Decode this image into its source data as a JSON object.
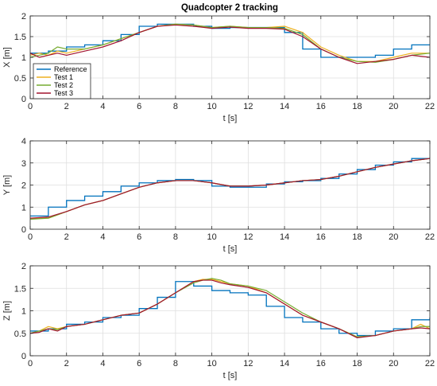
{
  "chart_data": {
    "type": "line",
    "title": "Quadcopter 2 tracking",
    "legend": {
      "placement": "bottom-left of top panel",
      "entries": [
        "Reference",
        "Test 1",
        "Test 2",
        "Test 3"
      ]
    },
    "series_colors": {
      "Reference": "#0072BD",
      "Test 1": "#EDB120",
      "Test 2": "#77AC30",
      "Test 3": "#A2142F"
    },
    "grid": true,
    "panels": [
      {
        "name": "X",
        "ylabel": "X [m]",
        "xlabel": "t [s]",
        "xlim": [
          0,
          22
        ],
        "ylim": [
          0,
          2
        ],
        "xticks": [
          0,
          2,
          4,
          6,
          8,
          10,
          12,
          14,
          16,
          18,
          20,
          22
        ],
        "yticks": [
          0,
          0.5,
          1,
          1.5,
          2
        ],
        "ytick_labels": [
          "0",
          "0.5",
          "1",
          "1.5",
          "2"
        ],
        "reference_steps": {
          "x": [
            0,
            1,
            2,
            3,
            4,
            5,
            6,
            7,
            8,
            9,
            10,
            11,
            12,
            13,
            14,
            15,
            16,
            17,
            18,
            19,
            20,
            21,
            22
          ],
          "y": [
            1.1,
            1.15,
            1.25,
            1.3,
            1.4,
            1.55,
            1.75,
            1.8,
            1.8,
            1.75,
            1.7,
            1.72,
            1.72,
            1.72,
            1.6,
            1.2,
            1.0,
            1.0,
            1.0,
            1.05,
            1.2,
            1.3,
            1.3
          ]
        },
        "series": [
          {
            "name": "Test 1",
            "x": [
              0,
              0.5,
              1,
              1.5,
              2,
              3,
              4,
              5,
              6,
              7,
              8,
              9,
              10,
              11,
              12,
              13,
              14,
              15,
              16,
              17,
              18,
              19,
              20,
              21,
              22
            ],
            "y": [
              1.05,
              1.1,
              1.05,
              1.15,
              1.1,
              1.2,
              1.3,
              1.45,
              1.6,
              1.75,
              1.8,
              1.78,
              1.72,
              1.75,
              1.72,
              1.72,
              1.75,
              1.6,
              1.25,
              1.05,
              0.9,
              0.9,
              1.0,
              1.1,
              1.1
            ]
          },
          {
            "name": "Test 2",
            "x": [
              0,
              0.5,
              1,
              1.5,
              2,
              3,
              4,
              5,
              6,
              7,
              8,
              9,
              10,
              11,
              12,
              13,
              14,
              15,
              16,
              17,
              18,
              19,
              20,
              21,
              22
            ],
            "y": [
              1.0,
              1.05,
              1.1,
              1.25,
              1.2,
              1.2,
              1.3,
              1.45,
              1.6,
              1.75,
              1.8,
              1.78,
              1.72,
              1.75,
              1.72,
              1.72,
              1.7,
              1.55,
              1.2,
              1.0,
              0.9,
              0.88,
              0.95,
              1.05,
              1.1
            ]
          },
          {
            "name": "Test 3",
            "x": [
              0,
              0.5,
              1,
              1.5,
              2,
              3,
              4,
              5,
              6,
              7,
              8,
              9,
              10,
              11,
              12,
              13,
              14,
              15,
              16,
              17,
              18,
              19,
              20,
              21,
              22
            ],
            "y": [
              1.1,
              1.0,
              1.05,
              1.1,
              1.05,
              1.15,
              1.25,
              1.4,
              1.6,
              1.75,
              1.78,
              1.75,
              1.7,
              1.73,
              1.7,
              1.7,
              1.68,
              1.5,
              1.2,
              1.0,
              0.85,
              0.9,
              0.95,
              1.05,
              1.0
            ]
          }
        ]
      },
      {
        "name": "Y",
        "ylabel": "Y [m]",
        "xlabel": "t [s]",
        "xlim": [
          0,
          22
        ],
        "ylim": [
          0,
          4
        ],
        "xticks": [
          0,
          2,
          4,
          6,
          8,
          10,
          12,
          14,
          16,
          18,
          20,
          22
        ],
        "yticks": [
          0,
          1,
          2,
          3,
          4
        ],
        "ytick_labels": [
          "0",
          "1",
          "2",
          "3",
          "4"
        ],
        "reference_steps": {
          "x": [
            0,
            1,
            2,
            3,
            4,
            5,
            6,
            7,
            8,
            9,
            10,
            11,
            12,
            13,
            14,
            15,
            16,
            17,
            18,
            19,
            20,
            21,
            22
          ],
          "y": [
            0.6,
            1.0,
            1.3,
            1.5,
            1.7,
            1.95,
            2.1,
            2.2,
            2.25,
            2.2,
            1.95,
            1.9,
            1.9,
            2.05,
            2.15,
            2.2,
            2.3,
            2.5,
            2.7,
            2.9,
            3.05,
            3.2,
            3.25
          ]
        },
        "series": [
          {
            "name": "Test 1",
            "x": [
              0,
              1,
              2,
              3,
              4,
              5,
              6,
              7,
              8,
              9,
              10,
              11,
              12,
              13,
              14,
              15,
              16,
              17,
              18,
              19,
              20,
              21,
              22
            ],
            "y": [
              0.5,
              0.5,
              0.8,
              1.1,
              1.3,
              1.6,
              1.9,
              2.1,
              2.2,
              2.2,
              2.1,
              1.95,
              1.95,
              2.0,
              2.1,
              2.2,
              2.25,
              2.4,
              2.6,
              2.8,
              2.95,
              3.1,
              3.2
            ]
          },
          {
            "name": "Test 2",
            "x": [
              0,
              1,
              2,
              3,
              4,
              5,
              6,
              7,
              8,
              9,
              10,
              11,
              12,
              13,
              14,
              15,
              16,
              17,
              18,
              19,
              20,
              21,
              22
            ],
            "y": [
              0.45,
              0.5,
              0.8,
              1.1,
              1.3,
              1.6,
              1.9,
              2.1,
              2.2,
              2.2,
              2.1,
              1.95,
              1.95,
              2.0,
              2.1,
              2.2,
              2.25,
              2.4,
              2.6,
              2.8,
              2.95,
              3.1,
              3.2
            ]
          },
          {
            "name": "Test 3",
            "x": [
              0,
              1,
              2,
              3,
              4,
              5,
              6,
              7,
              8,
              9,
              10,
              11,
              12,
              13,
              14,
              15,
              16,
              17,
              18,
              19,
              20,
              21,
              22
            ],
            "y": [
              0.5,
              0.55,
              0.8,
              1.1,
              1.3,
              1.6,
              1.9,
              2.1,
              2.2,
              2.2,
              2.1,
              1.95,
              1.95,
              2.0,
              2.1,
              2.2,
              2.25,
              2.4,
              2.6,
              2.8,
              2.95,
              3.1,
              3.2
            ]
          }
        ]
      },
      {
        "name": "Z",
        "ylabel": "Z [m]",
        "xlabel": "t [s]",
        "xlim": [
          0,
          22
        ],
        "ylim": [
          0,
          2
        ],
        "xticks": [
          0,
          2,
          4,
          6,
          8,
          10,
          12,
          14,
          16,
          18,
          20,
          22
        ],
        "yticks": [
          0,
          0.5,
          1,
          1.5,
          2
        ],
        "ytick_labels": [
          "0",
          "0.5",
          "1",
          "1.5",
          "2"
        ],
        "reference_steps": {
          "x": [
            0,
            1,
            2,
            3,
            4,
            5,
            6,
            7,
            8,
            9,
            10,
            11,
            12,
            13,
            14,
            15,
            16,
            17,
            18,
            19,
            20,
            21,
            22
          ],
          "y": [
            0.55,
            0.6,
            0.7,
            0.75,
            0.85,
            0.9,
            1.05,
            1.3,
            1.65,
            1.55,
            1.45,
            1.4,
            1.35,
            1.1,
            0.85,
            0.75,
            0.6,
            0.5,
            0.45,
            0.55,
            0.6,
            0.8,
            0.85
          ]
        },
        "series": [
          {
            "name": "Test 1",
            "x": [
              0,
              0.5,
              1,
              1.5,
              2,
              3,
              4,
              5,
              6,
              7,
              8,
              9,
              9.5,
              10,
              10.5,
              11,
              12,
              13,
              14,
              15,
              16,
              17,
              18,
              19,
              20,
              21,
              21.5,
              22
            ],
            "y": [
              0.5,
              0.55,
              0.65,
              0.6,
              0.65,
              0.7,
              0.8,
              0.9,
              0.95,
              1.15,
              1.4,
              1.65,
              1.7,
              1.7,
              1.65,
              1.6,
              1.55,
              1.4,
              1.15,
              0.9,
              0.75,
              0.6,
              0.42,
              0.45,
              0.55,
              0.6,
              0.7,
              0.6
            ]
          },
          {
            "name": "Test 2",
            "x": [
              0,
              0.5,
              1,
              1.5,
              2,
              3,
              4,
              5,
              6,
              7,
              8,
              9,
              9.5,
              10,
              10.5,
              11,
              12,
              13,
              14,
              15,
              16,
              17,
              18,
              19,
              20,
              21,
              21.5,
              22
            ],
            "y": [
              0.5,
              0.55,
              0.6,
              0.58,
              0.65,
              0.7,
              0.8,
              0.9,
              0.95,
              1.15,
              1.4,
              1.62,
              1.68,
              1.72,
              1.68,
              1.6,
              1.55,
              1.45,
              1.2,
              0.95,
              0.75,
              0.6,
              0.42,
              0.45,
              0.55,
              0.6,
              0.65,
              0.65
            ]
          },
          {
            "name": "Test 3",
            "x": [
              0,
              0.5,
              1,
              1.5,
              2,
              3,
              4,
              5,
              6,
              7,
              8,
              9,
              9.5,
              10,
              10.5,
              11,
              12,
              13,
              14,
              15,
              16,
              17,
              18,
              19,
              20,
              21,
              21.5,
              22
            ],
            "y": [
              0.5,
              0.52,
              0.6,
              0.55,
              0.65,
              0.7,
              0.8,
              0.9,
              0.95,
              1.15,
              1.4,
              1.65,
              1.68,
              1.68,
              1.62,
              1.58,
              1.52,
              1.4,
              1.15,
              0.9,
              0.75,
              0.6,
              0.4,
              0.45,
              0.55,
              0.6,
              0.62,
              0.6
            ]
          }
        ]
      }
    ]
  }
}
